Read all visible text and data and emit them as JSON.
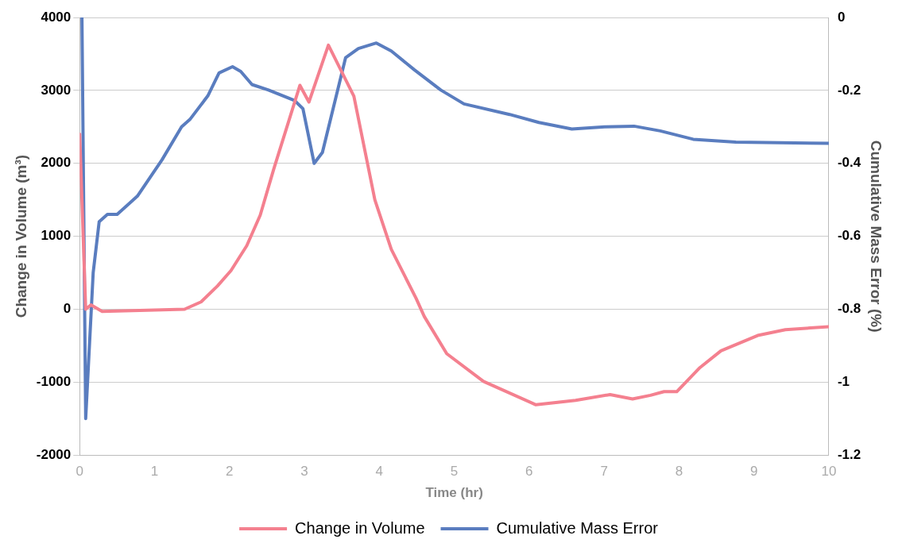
{
  "chart_data": {
    "type": "line",
    "xlabel": "Time (hr)",
    "ylabel": "Change in Volume (m³)",
    "y2label": "Cumulative Mass Error (%)",
    "xlim": [
      0,
      10
    ],
    "xticks": [
      0,
      1,
      2,
      3,
      4,
      5,
      6,
      7,
      8,
      9,
      10
    ],
    "ylim": [
      -2000,
      4000
    ],
    "yticks": [
      -2000,
      -1000,
      0,
      1000,
      2000,
      3000,
      4000
    ],
    "y2lim": [
      -1.2,
      0
    ],
    "y2ticks": [
      -1.2,
      -1,
      -0.8,
      -0.6,
      -0.4,
      -0.2,
      0
    ],
    "grid": "y",
    "legend": "bottom",
    "marker": "none",
    "line_style": "solid",
    "series": [
      {
        "name": "Change in Volume",
        "color": "#f4808f",
        "x": [
          0,
          0.08,
          0.15,
          0.3,
          1.4,
          1.62,
          1.84,
          2.02,
          2.23,
          2.41,
          2.59,
          2.94,
          3.06,
          3.32,
          3.66,
          3.94,
          4.16,
          4.49,
          4.6,
          4.9,
          5.39,
          6.09,
          6.62,
          7.08,
          7.38,
          7.62,
          7.8,
          7.97,
          8.28,
          8.56,
          9.05,
          9.42,
          10
        ],
        "values": [
          2400,
          0,
          60,
          -30,
          0,
          100,
          320,
          530,
          870,
          1290,
          1920,
          3070,
          2840,
          3620,
          2920,
          1500,
          820,
          150,
          -100,
          -610,
          -990,
          -1310,
          -1250,
          -1170,
          -1230,
          -1180,
          -1130,
          -1130,
          -800,
          -570,
          -360,
          -280,
          -240
        ]
      },
      {
        "name": "Cumulative Mass Error",
        "color": "#5a7dbf",
        "axis": "y2",
        "x": [
          0.03,
          0.08,
          0.18,
          0.26,
          0.37,
          0.5,
          0.77,
          1.1,
          1.36,
          1.47,
          1.71,
          1.86,
          2.04,
          2.15,
          2.3,
          2.52,
          2.87,
          2.98,
          3.13,
          3.24,
          3.55,
          3.72,
          3.96,
          4.16,
          4.47,
          4.82,
          5.13,
          5.74,
          6.13,
          6.57,
          7.01,
          7.4,
          7.75,
          8.19,
          8.76,
          10
        ],
        "values": [
          0,
          -1.1,
          -0.7,
          -0.56,
          -0.54,
          -0.54,
          -0.49,
          -0.39,
          -0.3,
          -0.28,
          -0.215,
          -0.152,
          -0.135,
          -0.148,
          -0.184,
          -0.199,
          -0.228,
          -0.25,
          -0.4,
          -0.37,
          -0.11,
          -0.085,
          -0.07,
          -0.092,
          -0.144,
          -0.199,
          -0.237,
          -0.266,
          -0.288,
          -0.306,
          -0.3,
          -0.298,
          -0.311,
          -0.334,
          -0.342,
          -0.345
        ]
      }
    ]
  }
}
